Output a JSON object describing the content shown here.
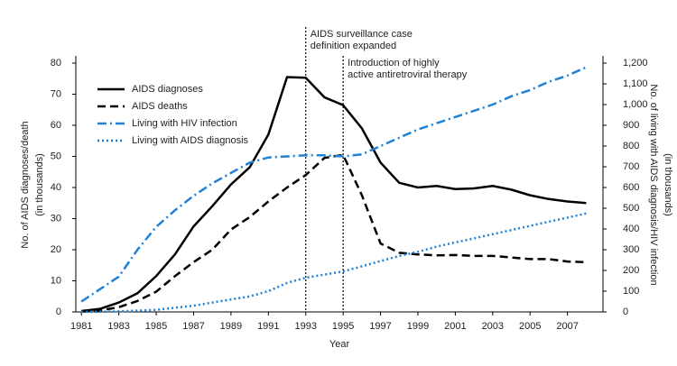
{
  "chart_data": {
    "type": "line",
    "x": [
      1981,
      1982,
      1983,
      1984,
      1985,
      1986,
      1987,
      1988,
      1989,
      1990,
      1991,
      1992,
      1993,
      1994,
      1995,
      1996,
      1997,
      1998,
      1999,
      2000,
      2001,
      2002,
      2003,
      2004,
      2005,
      2006,
      2007,
      2008
    ],
    "xlim": [
      1980.7,
      2008.9
    ],
    "xticks": [
      1981,
      1983,
      1985,
      1987,
      1989,
      1991,
      1993,
      1995,
      1997,
      1999,
      2001,
      2003,
      2005,
      2007
    ],
    "xlabel": "Year",
    "ylim": [
      0,
      80
    ],
    "yticks": [
      0,
      10,
      20,
      30,
      40,
      50,
      60,
      70,
      80
    ],
    "ylabel": [
      "No. of AIDS diagnoses/death",
      "(in thousands)"
    ],
    "y2lim": [
      0,
      1200
    ],
    "y2ticks": [
      0,
      100,
      200,
      300,
      400,
      500,
      600,
      700,
      800,
      900,
      {
        "value": 1000,
        "label": "1,000"
      },
      {
        "value": 1100,
        "label": "1,100"
      },
      {
        "value": 1200,
        "label": "1,200"
      }
    ],
    "y2label": [
      "No. of living with AIDS diagnosis/HIV infection",
      "(in thousands)"
    ],
    "grid": false,
    "legend": "upper left",
    "series": [
      {
        "name": "AIDS diagnoses",
        "color": "#000000",
        "style": "solid",
        "values": [
          0.3,
          1,
          3,
          6,
          11.5,
          18.5,
          27.5,
          34,
          41,
          46.5,
          57,
          75.5,
          75.3,
          69,
          66.5,
          59,
          48,
          41.5,
          40,
          40.5,
          39.5,
          39.7,
          40.5,
          39.3,
          37.5,
          36.3,
          35.5,
          35
        ]
      },
      {
        "name": "AIDS deaths",
        "color": "#000000",
        "style": "dashed",
        "values": [
          0.1,
          0.5,
          1.5,
          3.5,
          6.5,
          11.5,
          16,
          20,
          26.5,
          30.5,
          35.5,
          40,
          44,
          49.5,
          50.5,
          37.5,
          22,
          19,
          18.5,
          18.2,
          18.3,
          18,
          18,
          17.5,
          17,
          17,
          16.2,
          16
        ]
      },
      {
        "name": "Living with HIV infection",
        "color": "#1f82d6",
        "style": "dashdot",
        "axis": "y2",
        "values": [
          50,
          110,
          170,
          300,
          410,
          490,
          560,
          620,
          670,
          720,
          745,
          750,
          755,
          755,
          750,
          760,
          800,
          840,
          880,
          910,
          940,
          970,
          1000,
          1040,
          1070,
          1110,
          1140,
          1180
        ]
      },
      {
        "name": "Living with AIDS diagnosis",
        "color": "#1f82d6",
        "style": "dotted",
        "axis": "y2",
        "values": [
          0,
          1,
          3,
          6,
          10,
          20,
          30,
          45,
          60,
          75,
          100,
          140,
          165,
          180,
          195,
          220,
          245,
          270,
          290,
          315,
          335,
          355,
          375,
          395,
          415,
          435,
          455,
          475
        ]
      }
    ],
    "annotations": [
      {
        "x": 1993,
        "lines": [
          "AIDS surveillance case",
          "definition expanded"
        ]
      },
      {
        "x": 1995,
        "lines": [
          "Introduction of highly",
          "active antiretroviral therapy"
        ]
      }
    ]
  }
}
